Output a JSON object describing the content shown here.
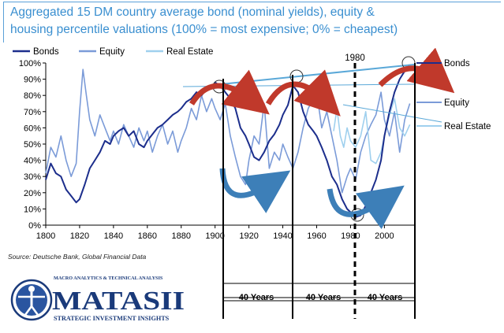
{
  "title": {
    "line1": "Aggregated 15 DM country average bond (nominal yields), equity &",
    "line2": "housing percentile valuations (100% = most expensive; 0% = cheapest)"
  },
  "source": "Source: Deutsche Bank, Global Financial Data",
  "logo": {
    "top_text": "MACRO ANALYTICS & TECHNICAL ANALYSIS",
    "name": "MATASII",
    "tagline": "STRATEGIC INVESTMENT INSIGHTS"
  },
  "colors": {
    "bonds": "#1c2e8c",
    "equity": "#7b9bd8",
    "real_estate": "#9fd0ee",
    "arrow_red": "#c0392b",
    "arrow_blue": "#3d7fb8",
    "title": "#3a8fd0"
  },
  "chart_data": {
    "type": "line",
    "title": "Aggregated 15 DM country average bond (nominal yields), equity & housing percentile valuations (100% = most expensive; 0% = cheapest)",
    "xlim": [
      1800,
      2018
    ],
    "ylim": [
      0,
      100
    ],
    "x_ticks": [
      1800,
      1820,
      1840,
      1860,
      1880,
      1900,
      1920,
      1940,
      1960,
      1980,
      2000
    ],
    "y_ticks": [
      0,
      10,
      20,
      30,
      40,
      50,
      60,
      70,
      80,
      90,
      100
    ],
    "y_tick_labels": [
      "0%",
      "10%",
      "20%",
      "30%",
      "40%",
      "50%",
      "60%",
      "70%",
      "80%",
      "90%",
      "100%"
    ],
    "legend": [
      "Bonds",
      "Equity",
      "Real Estate"
    ],
    "series": [
      {
        "name": "Bonds",
        "x": [
          1800,
          1803,
          1806,
          1809,
          1812,
          1815,
          1818,
          1820,
          1823,
          1826,
          1829,
          1832,
          1835,
          1838,
          1840,
          1843,
          1846,
          1849,
          1852,
          1855,
          1858,
          1860,
          1863,
          1866,
          1869,
          1872,
          1875,
          1878,
          1880,
          1883,
          1886,
          1889,
          1892,
          1895,
          1898,
          1900,
          1903,
          1906,
          1909,
          1912,
          1915,
          1918,
          1920,
          1923,
          1926,
          1929,
          1932,
          1935,
          1938,
          1940,
          1943,
          1946,
          1949,
          1952,
          1955,
          1958,
          1960,
          1963,
          1966,
          1969,
          1972,
          1975,
          1978,
          1980,
          1983,
          1986,
          1989,
          1992,
          1995,
          1998,
          2000,
          2003,
          2006,
          2009,
          2012,
          2015
        ],
        "values": [
          28,
          38,
          32,
          30,
          22,
          18,
          14,
          16,
          25,
          35,
          40,
          45,
          52,
          50,
          55,
          58,
          60,
          55,
          58,
          50,
          48,
          52,
          56,
          60,
          62,
          65,
          68,
          70,
          72,
          76,
          78,
          82,
          80,
          84,
          85,
          88,
          86,
          82,
          78,
          72,
          60,
          55,
          50,
          42,
          40,
          45,
          52,
          56,
          62,
          68,
          74,
          86,
          82,
          70,
          62,
          58,
          55,
          48,
          40,
          30,
          25,
          16,
          10,
          8,
          5,
          6,
          12,
          20,
          28,
          40,
          55,
          70,
          82,
          90,
          95,
          99
        ]
      },
      {
        "name": "Equity",
        "x": [
          1800,
          1803,
          1806,
          1809,
          1812,
          1815,
          1818,
          1820,
          1822,
          1824,
          1826,
          1829,
          1832,
          1835,
          1838,
          1840,
          1843,
          1846,
          1849,
          1852,
          1855,
          1858,
          1860,
          1863,
          1866,
          1869,
          1872,
          1875,
          1878,
          1880,
          1883,
          1886,
          1889,
          1892,
          1895,
          1898,
          1900,
          1903,
          1906,
          1909,
          1912,
          1915,
          1918,
          1920,
          1923,
          1926,
          1929,
          1932,
          1935,
          1938,
          1940,
          1943,
          1946,
          1949,
          1952,
          1955,
          1958,
          1960,
          1963,
          1966,
          1969,
          1972,
          1975,
          1978,
          1980,
          1983,
          1986,
          1989,
          1992,
          1995,
          1998,
          2000,
          2003,
          2006,
          2009,
          2012,
          2015
        ],
        "values": [
          32,
          48,
          42,
          55,
          40,
          30,
          38,
          70,
          96,
          80,
          65,
          55,
          68,
          60,
          52,
          58,
          50,
          62,
          55,
          48,
          60,
          52,
          58,
          45,
          55,
          62,
          50,
          58,
          45,
          52,
          60,
          72,
          65,
          80,
          70,
          78,
          72,
          65,
          75,
          55,
          42,
          30,
          25,
          40,
          55,
          50,
          75,
          35,
          45,
          40,
          50,
          42,
          35,
          45,
          60,
          72,
          78,
          82,
          60,
          70,
          55,
          40,
          20,
          30,
          35,
          28,
          45,
          55,
          62,
          68,
          82,
          65,
          55,
          70,
          45,
          65,
          75
        ]
      },
      {
        "name": "Real Estate",
        "x": [
          1970,
          1972,
          1974,
          1976,
          1978,
          1980,
          1983,
          1986,
          1989,
          1992,
          1995,
          1998,
          2000,
          2003,
          2006,
          2009,
          2012,
          2015
        ],
        "values": [
          58,
          72,
          55,
          48,
          60,
          52,
          48,
          55,
          70,
          40,
          38,
          45,
          55,
          68,
          78,
          60,
          55,
          62
        ]
      }
    ],
    "annotations": [
      "1980",
      "40 Years",
      "40 Years",
      "40 Years"
    ],
    "right_labels": [
      "Bonds",
      "Equity",
      "Real Estate"
    ]
  }
}
